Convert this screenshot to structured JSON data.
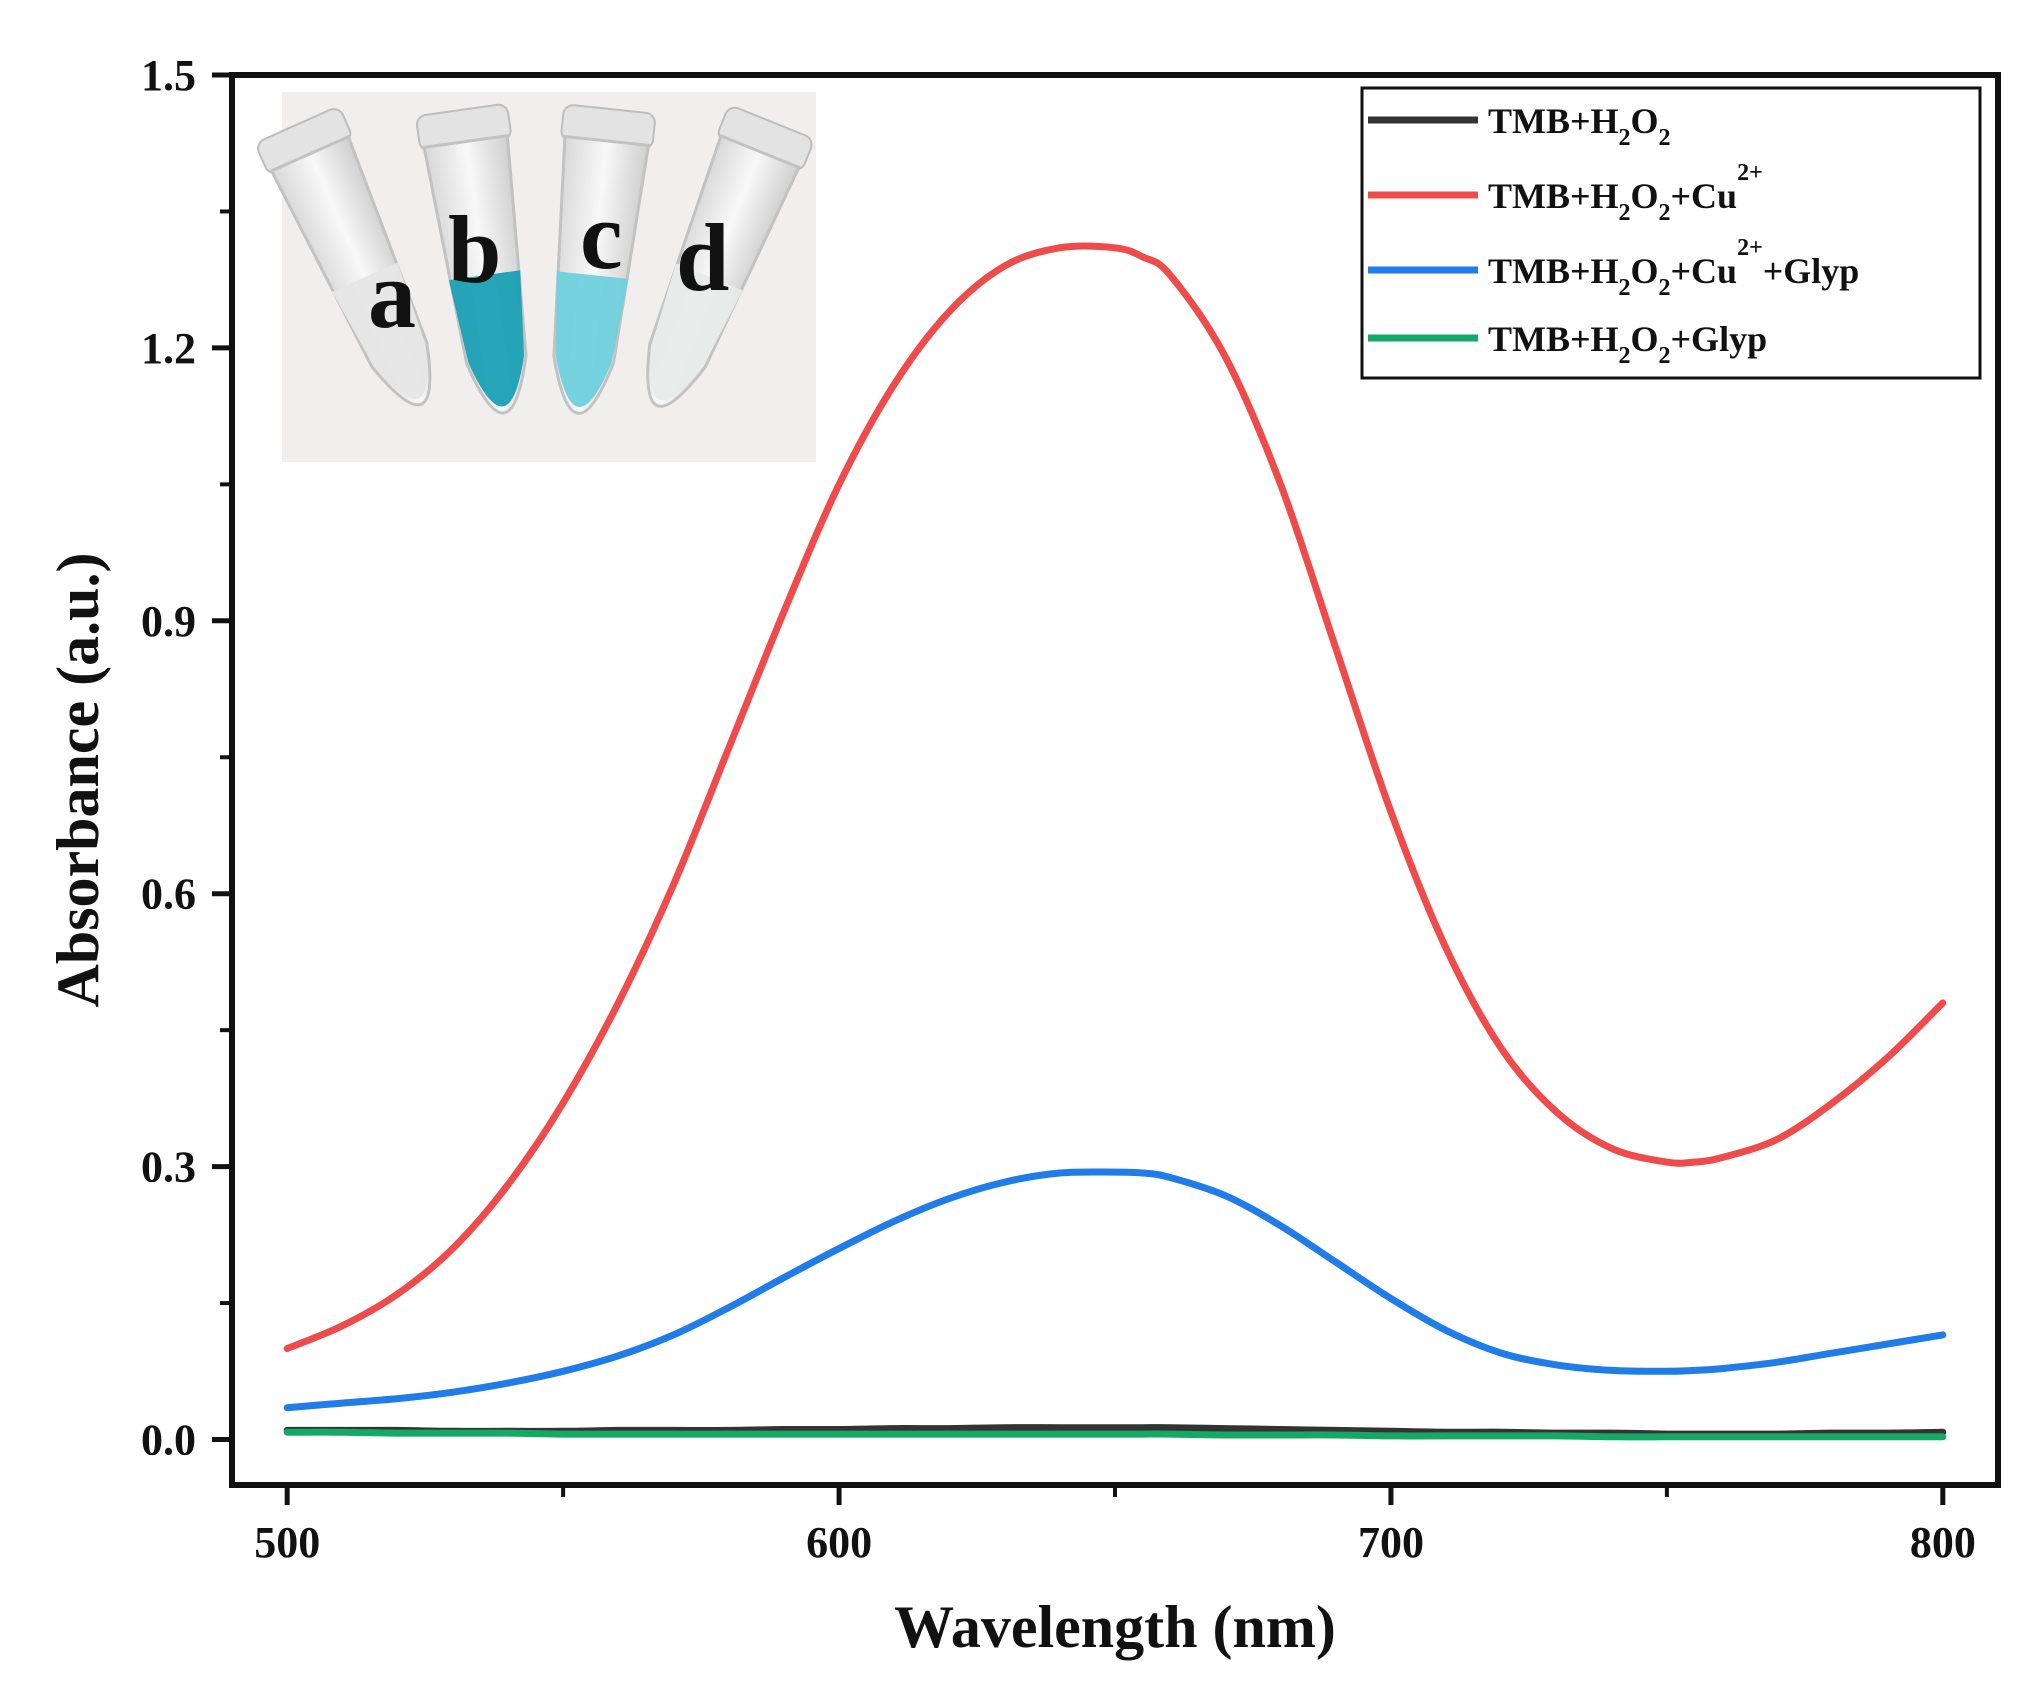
{
  "chart_data": {
    "type": "line",
    "xlabel": "Wavelength (nm)",
    "ylabel": "Absorbance (a.u.)",
    "xlim": [
      490,
      810
    ],
    "ylim": [
      -0.05,
      1.5
    ],
    "x_ticks": [
      500,
      600,
      700,
      800
    ],
    "y_ticks": [
      0.0,
      0.3,
      0.6,
      0.9,
      1.2,
      1.5
    ],
    "x_tick_labels": [
      "500",
      "600",
      "700",
      "800"
    ],
    "y_tick_labels": [
      "0.0",
      "0.3",
      "0.6",
      "0.9",
      "1.2",
      "1.5"
    ],
    "legend_position": "top-right",
    "x": [
      500,
      510,
      520,
      530,
      540,
      550,
      560,
      570,
      580,
      590,
      600,
      610,
      620,
      630,
      640,
      650,
      655,
      660,
      670,
      680,
      690,
      700,
      710,
      720,
      730,
      740,
      750,
      755,
      760,
      770,
      780,
      790,
      800
    ],
    "series": [
      {
        "name": "TMB+H₂O₂",
        "color": "#333333",
        "values": [
          0.01,
          0.01,
          0.01,
          0.009,
          0.009,
          0.009,
          0.01,
          0.01,
          0.01,
          0.011,
          0.011,
          0.012,
          0.012,
          0.013,
          0.013,
          0.013,
          0.013,
          0.013,
          0.012,
          0.011,
          0.01,
          0.009,
          0.008,
          0.008,
          0.007,
          0.007,
          0.006,
          0.006,
          0.006,
          0.006,
          0.007,
          0.007,
          0.008
        ]
      },
      {
        "name": "TMB+H₂O₂+Cu²⁺",
        "color": "#f04b4b",
        "values": [
          0.1,
          0.125,
          0.16,
          0.21,
          0.28,
          0.37,
          0.48,
          0.61,
          0.76,
          0.91,
          1.05,
          1.16,
          1.24,
          1.29,
          1.31,
          1.31,
          1.3,
          1.28,
          1.19,
          1.05,
          0.87,
          0.69,
          0.54,
          0.43,
          0.36,
          0.32,
          0.305,
          0.305,
          0.31,
          0.33,
          0.37,
          0.42,
          0.48
        ]
      },
      {
        "name": "TMB+H₂O₂+Cu²⁺+Glyp",
        "color": "#1f7ce8",
        "values": [
          0.035,
          0.04,
          0.045,
          0.052,
          0.062,
          0.075,
          0.092,
          0.115,
          0.145,
          0.178,
          0.21,
          0.24,
          0.265,
          0.283,
          0.293,
          0.294,
          0.293,
          0.288,
          0.268,
          0.235,
          0.195,
          0.155,
          0.12,
          0.095,
          0.082,
          0.076,
          0.075,
          0.076,
          0.078,
          0.085,
          0.095,
          0.105,
          0.115
        ]
      },
      {
        "name": "TMB+H₂O₂+Glyp",
        "color": "#16a866",
        "values": [
          0.008,
          0.008,
          0.007,
          0.007,
          0.007,
          0.006,
          0.006,
          0.006,
          0.006,
          0.006,
          0.006,
          0.006,
          0.006,
          0.006,
          0.006,
          0.006,
          0.006,
          0.006,
          0.005,
          0.005,
          0.005,
          0.004,
          0.004,
          0.004,
          0.004,
          0.003,
          0.003,
          0.003,
          0.003,
          0.003,
          0.003,
          0.003,
          0.003
        ]
      }
    ],
    "legend": [
      {
        "base": "TMB+H",
        "sub1": "2",
        "mid": "O",
        "sub2": "2",
        "rest": ""
      },
      {
        "base": "TMB+H",
        "sub1": "2",
        "mid": "O",
        "sub2": "2",
        "rest": "+Cu",
        "sup": "2+",
        "tail": ""
      },
      {
        "base": "TMB+H",
        "sub1": "2",
        "mid": "O",
        "sub2": "2",
        "rest": "+Cu",
        "sup": "2+",
        "tail": "+Glyp"
      },
      {
        "base": "TMB+H",
        "sub1": "2",
        "mid": "O",
        "sub2": "2",
        "rest": "+Glyp"
      }
    ],
    "inset": {
      "labels": [
        "a",
        "b",
        "c",
        "d"
      ],
      "tube_colors": [
        "#e6e6e6",
        "#1aa0b5",
        "#6fd0dc",
        "#e9eaea"
      ]
    }
  }
}
